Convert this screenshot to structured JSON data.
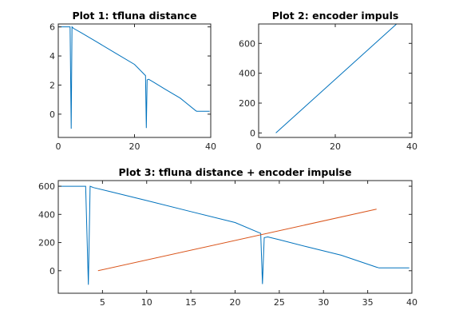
{
  "chart_data": [
    {
      "type": "line",
      "title": "Plot 1: tfluna distance",
      "xlabel": "",
      "ylabel": "",
      "xlim": [
        0,
        40
      ],
      "ylim": [
        -1.6,
        6.2
      ],
      "xticks": [
        0,
        20,
        40
      ],
      "yticks": [
        0,
        2,
        4,
        6
      ],
      "grid": false,
      "series": [
        {
          "color": "#0072bd",
          "x": [
            0,
            1.5,
            3.1,
            3.4,
            3.6,
            4.0,
            6.0,
            10.0,
            15.0,
            20.0,
            22.9,
            23.1,
            23.3,
            23.7,
            25.0,
            28.0,
            32.0,
            36.0,
            36.3,
            39.7
          ],
          "y": [
            6.0,
            6.0,
            6.0,
            -1.0,
            6.0,
            5.9,
            5.6,
            4.98,
            4.2,
            3.42,
            2.65,
            -0.95,
            2.35,
            2.4,
            2.2,
            1.72,
            1.1,
            0.25,
            0.2,
            0.2
          ]
        }
      ]
    },
    {
      "type": "line",
      "title": "Plot 2: encoder impuls",
      "xlabel": "",
      "ylabel": "",
      "xlim": [
        0,
        40
      ],
      "ylim": [
        -30,
        730
      ],
      "xticks": [
        0,
        20,
        40
      ],
      "yticks": [
        0,
        200,
        400,
        600
      ],
      "grid": false,
      "series": [
        {
          "color": "#0072bd",
          "x": [
            4.5,
            36.0
          ],
          "y": [
            0,
            730
          ]
        }
      ]
    },
    {
      "type": "line",
      "title": "Plot 3: tfluna distance + encoder impulse",
      "xlabel": "",
      "ylabel": "",
      "xlim": [
        0,
        40
      ],
      "ylim": [
        -160,
        640
      ],
      "xticks": [
        5,
        10,
        15,
        20,
        25,
        30,
        35,
        40
      ],
      "yticks": [
        0,
        200,
        400,
        600
      ],
      "grid": false,
      "series": [
        {
          "color": "#0072bd",
          "x": [
            0,
            1.5,
            3.1,
            3.4,
            3.6,
            4.0,
            6.0,
            10.0,
            15.0,
            20.0,
            22.9,
            23.1,
            23.3,
            23.7,
            25.0,
            28.0,
            32.0,
            36.0,
            36.3,
            39.7
          ],
          "y": [
            600,
            600,
            600,
            -100,
            600,
            590,
            560,
            498,
            420,
            342,
            265,
            -95,
            235,
            240,
            220,
            172,
            110,
            25,
            20,
            20
          ]
        },
        {
          "color": "#d95319",
          "x": [
            4.5,
            36.0
          ],
          "y": [
            0,
            437
          ]
        }
      ]
    }
  ]
}
